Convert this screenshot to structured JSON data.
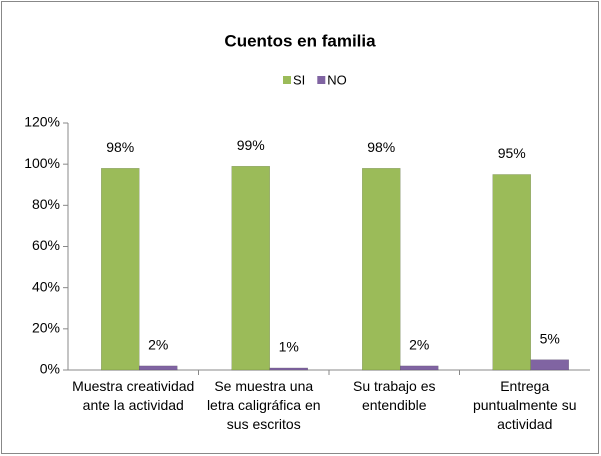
{
  "chart_data": {
    "type": "bar",
    "title": "Cuentos en familia",
    "categories": [
      "Muestra creatividad ante la actividad",
      "Se muestra una letra caligráfica en sus escritos",
      "Su trabajo es entendible",
      "Entrega puntualmente su actividad"
    ],
    "series": [
      {
        "name": "SI",
        "color": "#9bbb59",
        "values": [
          98,
          99,
          98,
          95
        ],
        "value_labels": [
          "98%",
          "99%",
          "98%",
          "95%"
        ]
      },
      {
        "name": "NO",
        "color": "#8064a2",
        "values": [
          2,
          1,
          2,
          5
        ],
        "value_labels": [
          "2%",
          "1%",
          "2%",
          "5%"
        ]
      }
    ],
    "ylim": [
      0,
      120
    ],
    "yticks": [
      {
        "value": 0,
        "label": "0%"
      },
      {
        "value": 20,
        "label": "20%"
      },
      {
        "value": 40,
        "label": "40%"
      },
      {
        "value": 60,
        "label": "60%"
      },
      {
        "value": 80,
        "label": "80%"
      },
      {
        "value": 100,
        "label": "100%"
      },
      {
        "value": 120,
        "label": "120%"
      }
    ],
    "grid": false,
    "legend": "top"
  }
}
